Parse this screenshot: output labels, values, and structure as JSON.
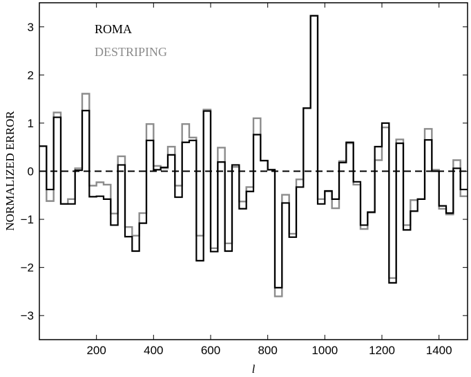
{
  "chart_data": {
    "type": "line",
    "step": true,
    "xlabel": "l",
    "ylabel": "NORMALIZED ERROR",
    "xlim": [
      0,
      1500
    ],
    "ylim": [
      -3.5,
      3.5
    ],
    "xticks": [
      200,
      400,
      600,
      800,
      1000,
      1200,
      1400
    ],
    "yticks": [
      -3,
      -2,
      -1,
      0,
      1,
      2,
      3
    ],
    "legend_position": "top-left",
    "zero_line": "dashed",
    "bin_edges": [
      0,
      25,
      50,
      75,
      100,
      125,
      150,
      175,
      200,
      225,
      250,
      275,
      300,
      325,
      350,
      375,
      400,
      425,
      450,
      475,
      500,
      525,
      550,
      575,
      600,
      625,
      650,
      675,
      700,
      725,
      750,
      775,
      800,
      825,
      850,
      875,
      900,
      925,
      950,
      975,
      1000,
      1025,
      1050,
      1075,
      1100,
      1125,
      1150,
      1175,
      1200,
      1225,
      1250,
      1275,
      1300,
      1325,
      1350,
      1375,
      1400,
      1425,
      1450,
      1475,
      1500
    ],
    "series": [
      {
        "name": "ROMA",
        "color": "#000000",
        "values": [
          0.52,
          -0.38,
          1.12,
          -0.68,
          -0.68,
          0.02,
          1.26,
          -0.53,
          -0.52,
          -0.58,
          -1.12,
          0.13,
          -1.36,
          -1.66,
          -1.08,
          0.64,
          0.03,
          0.08,
          0.34,
          -0.54,
          0.6,
          0.64,
          -1.86,
          1.25,
          -1.67,
          0.19,
          -1.66,
          0.13,
          -0.78,
          -0.42,
          0.76,
          0.22,
          0.03,
          -2.42,
          -0.66,
          -1.37,
          -0.33,
          1.31,
          3.23,
          -0.68,
          -0.41,
          -0.58,
          0.18,
          0.6,
          -0.22,
          -1.12,
          -0.85,
          0.51,
          1.0,
          -2.32,
          0.58,
          -1.22,
          -0.83,
          -0.58,
          0.65,
          0.0,
          -0.72,
          -0.87,
          0.06,
          -0.38
        ]
      },
      {
        "name": "DESTRIPING",
        "color": "#8c8c8c",
        "values": [
          0.52,
          -0.62,
          1.22,
          -0.68,
          -0.58,
          0.06,
          1.61,
          -0.3,
          -0.23,
          -0.28,
          -0.88,
          0.31,
          -1.16,
          -1.34,
          -0.87,
          0.98,
          0.11,
          0.06,
          0.51,
          -0.3,
          0.98,
          0.7,
          -1.34,
          1.28,
          -1.6,
          0.49,
          -1.5,
          0.09,
          -0.63,
          -0.33,
          1.1,
          0.22,
          0.03,
          -2.6,
          -0.49,
          -1.3,
          -0.17,
          1.31,
          3.23,
          -0.58,
          -0.42,
          -0.77,
          0.21,
          0.58,
          -0.28,
          -1.2,
          -0.86,
          0.23,
          0.91,
          -2.22,
          0.66,
          -1.12,
          -0.6,
          -0.58,
          0.88,
          0.03,
          -0.78,
          -0.9,
          0.23,
          -0.52
        ]
      }
    ]
  }
}
